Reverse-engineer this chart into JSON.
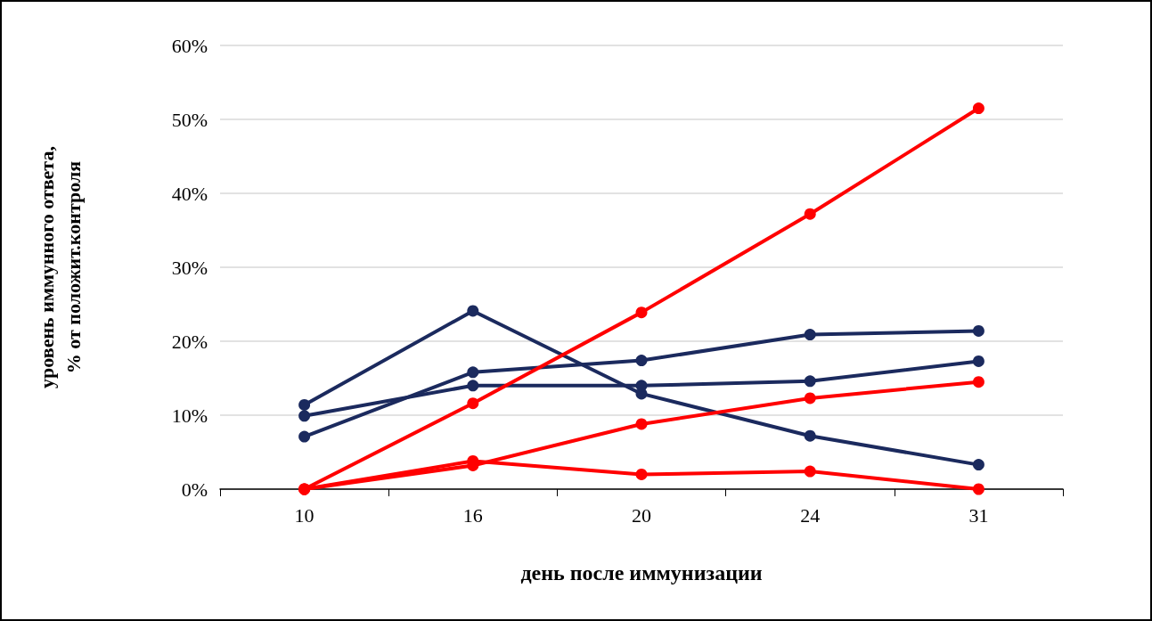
{
  "chart_data": {
    "type": "line",
    "xlabel": "день после иммунизации",
    "ylabel": "уровень иммунного ответа,\n% от положит.контроля",
    "categories": [
      "10",
      "16",
      "20",
      "24",
      "31"
    ],
    "series": [
      {
        "color": "#1b2a5e",
        "values": [
          11.4,
          24.1,
          12.9,
          7.2,
          3.3
        ]
      },
      {
        "color": "#1b2a5e",
        "values": [
          9.9,
          14.0,
          14.0,
          14.6,
          17.3
        ]
      },
      {
        "color": "#1b2a5e",
        "values": [
          7.1,
          15.8,
          17.4,
          20.9,
          21.4
        ]
      },
      {
        "color": "#ff0000",
        "values": [
          0,
          11.6,
          23.9,
          37.2,
          51.5
        ]
      },
      {
        "color": "#ff0000",
        "values": [
          0,
          3.2,
          8.8,
          12.3,
          14.5
        ]
      },
      {
        "color": "#ff0000",
        "values": [
          0,
          3.8,
          2.0,
          2.4,
          0
        ]
      }
    ],
    "ylim": [
      0,
      60
    ],
    "yticks": [
      {
        "value": 0,
        "label": "0%"
      },
      {
        "value": 10,
        "label": "10%"
      },
      {
        "value": 20,
        "label": "20%"
      },
      {
        "value": 30,
        "label": "30%"
      },
      {
        "value": 40,
        "label": "40%"
      },
      {
        "value": 50,
        "label": "50%"
      },
      {
        "value": 60,
        "label": "60%"
      }
    ],
    "grid": "y",
    "marker": "circle",
    "line_style": "solid"
  }
}
